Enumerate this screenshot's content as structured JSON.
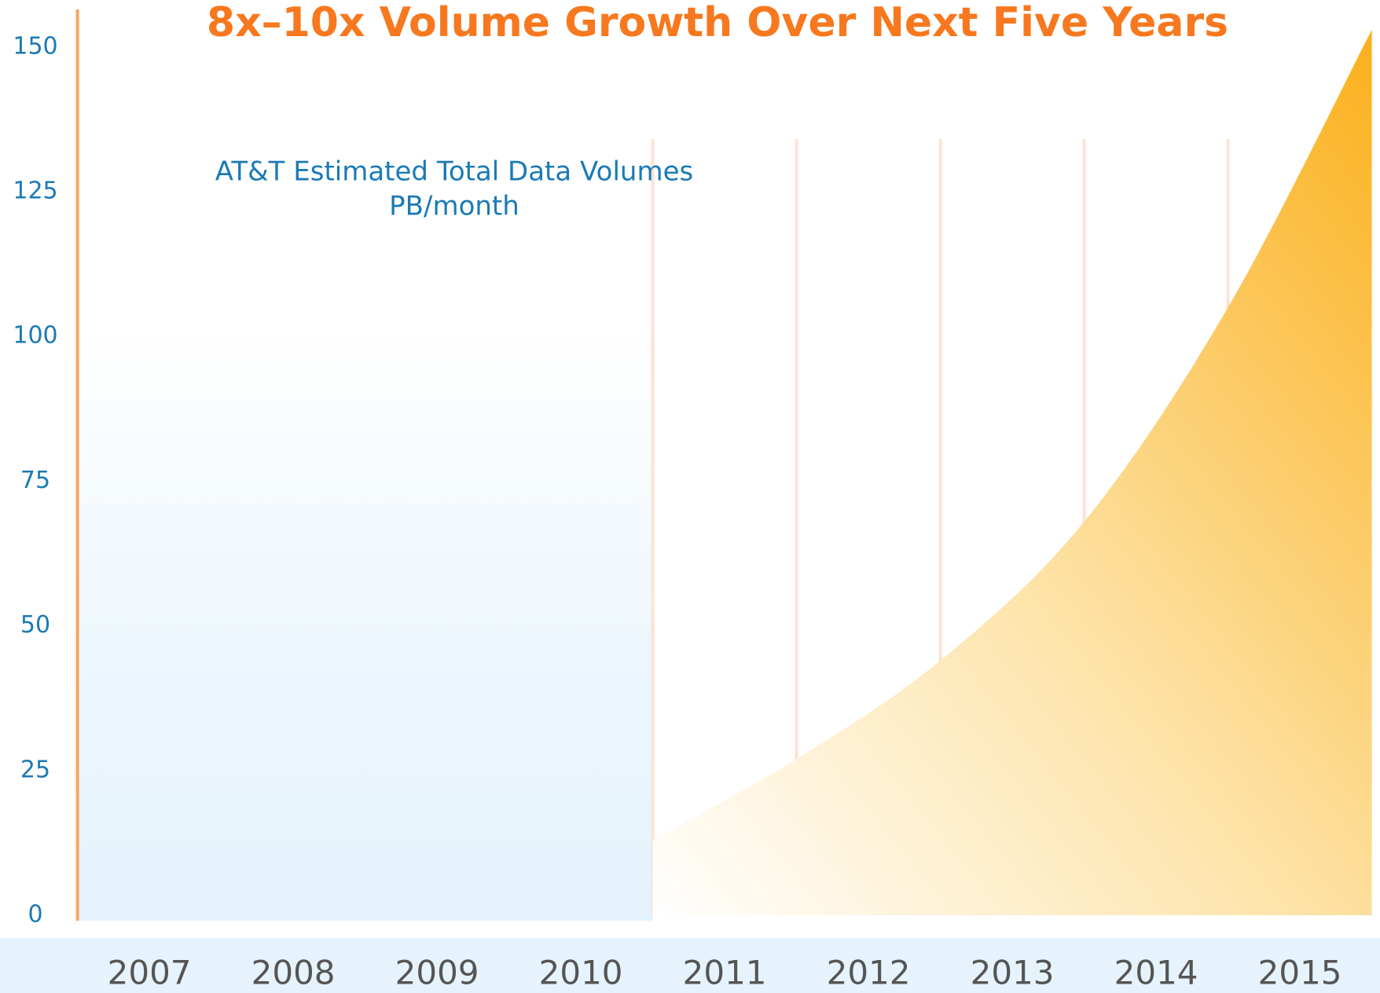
{
  "chart_data": {
    "type": "area",
    "title": "8x–10x Volume Growth Over Next Five Years",
    "subtitle_lines": [
      "AT&T Estimated Total Data Volumes",
      "PB/month"
    ],
    "categories": [
      "2007",
      "2008",
      "2009",
      "2010",
      "2011",
      "2012",
      "2013",
      "2014",
      "2015"
    ],
    "series": [
      {
        "color": "#fbb01c",
        "values": [
          null,
          null,
          null,
          13,
          27,
          44,
          68,
          105,
          153
        ]
      }
    ],
    "ylim": [
      0,
      155
    ],
    "yticks": [
      0,
      25,
      50,
      75,
      100,
      125,
      150
    ],
    "grid": false
  }
}
